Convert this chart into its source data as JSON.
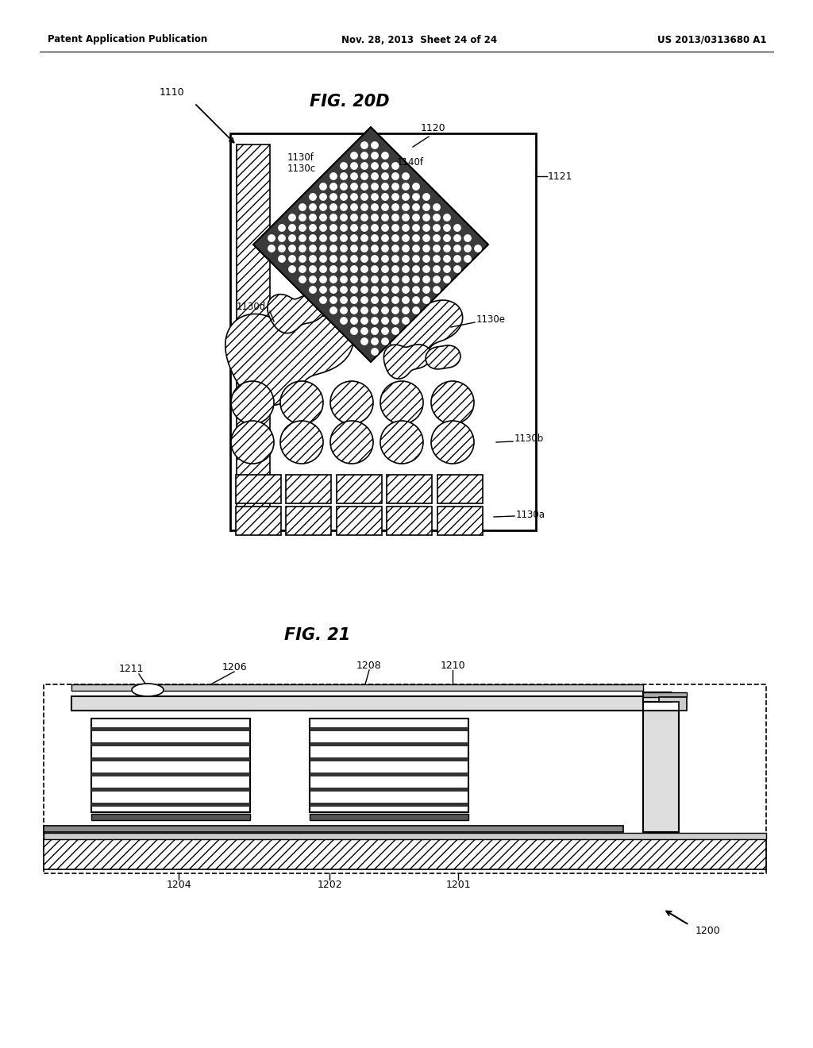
{
  "header_left": "Patent Application Publication",
  "header_mid": "Nov. 28, 2013  Sheet 24 of 24",
  "header_right": "US 2013/0313680 A1",
  "fig1_title": "FIG. 20D",
  "fig2_title": "FIG. 21",
  "bg_color": "#ffffff",
  "line_color": "#000000"
}
